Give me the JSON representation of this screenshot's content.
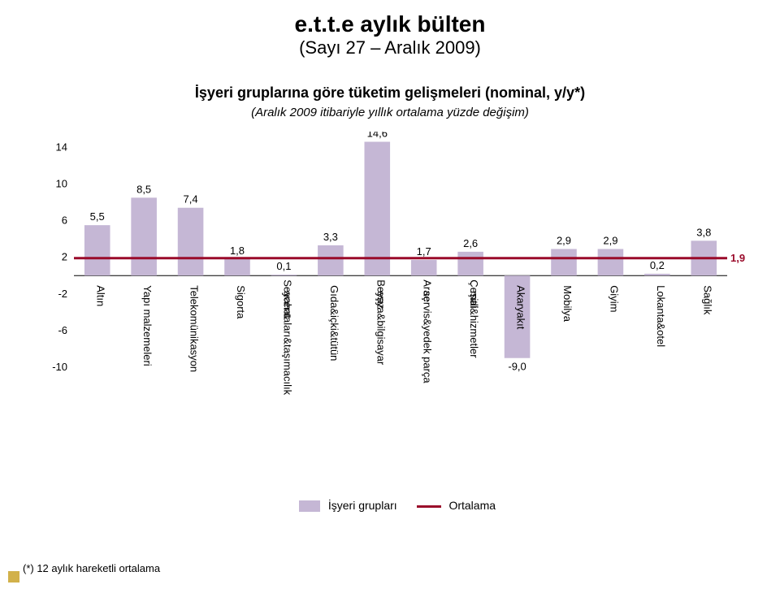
{
  "header": {
    "main": "e.t.t.e aylık bülten",
    "sub": "(Sayı 27 – Aralık 2009)"
  },
  "subtitle": "İşyeri gruplarına göre tüketim gelişmeleri (nominal, y/y*)",
  "subtitle2": "(Aralık 2009 itibariyle yıllık ortalama yüzde değişim)",
  "footnote": "(*) 12 aylık hareketli ortalama",
  "legend": {
    "bar_label": "İşyeri grupları",
    "line_label": "Ortalama"
  },
  "chart": {
    "type": "bar+line",
    "categories": [
      "Altın",
      "Yapı malzemeleri",
      "Telekomünikasyon",
      "Sigorta",
      "Seyahat acentaları&taşımacılık",
      "Gıda&içki&tütün",
      "Beyaz eşya&bilgisayar",
      "Araç servis&yedek parça",
      "Çeşitli mal&hizmetler",
      "Akaryakıt",
      "Mobilya",
      "Giyim",
      "Lokanta&otel",
      "Sağlık"
    ],
    "values": [
      5.5,
      8.5,
      7.4,
      1.8,
      0.1,
      3.3,
      14.6,
      1.7,
      2.6,
      -9.0,
      2.9,
      2.9,
      0.2,
      3.8
    ],
    "value_labels": [
      "5,5",
      "8,5",
      "7,4",
      "1,8",
      "0,1",
      "3,3",
      "14,6",
      "1,7",
      "2,6",
      "-9,0",
      "2,9",
      "2,9",
      "0,2",
      "3,8"
    ],
    "average": 1.9,
    "average_label": "1,9",
    "y_ticks": [
      -10,
      -6,
      -2,
      2,
      6,
      10,
      14
    ],
    "ylim": [
      -10,
      15
    ],
    "bar_color": "#c5b7d5",
    "line_color": "#9a0a2a",
    "axis_color": "#000000",
    "grid_none": true,
    "label_fontsize": 13,
    "value_fontsize": 13,
    "tick_fontsize": 13,
    "bar_width_ratio": 0.55,
    "background_color": "#ffffff",
    "corner_color": "#d2b14a"
  }
}
